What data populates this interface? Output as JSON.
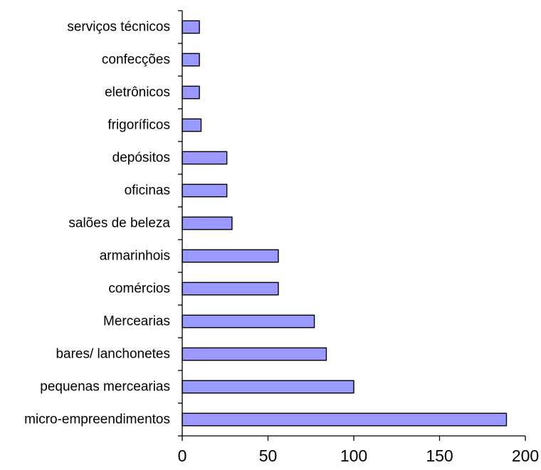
{
  "chart_data": {
    "type": "bar",
    "orientation": "horizontal",
    "title": "",
    "xlabel": "",
    "ylabel": "",
    "categories": [
      "serviços técnicos",
      "confecções",
      "eletrônicos",
      "frigoríficos",
      "depósitos",
      "oficinas",
      "salões de beleza",
      "armarinhois",
      "comércios",
      "Mercearias",
      "bares/ lanchonetes",
      "pequenas mercearias",
      "micro-empreendimentos"
    ],
    "values": [
      10,
      10,
      10,
      11,
      26,
      26,
      29,
      56,
      56,
      77,
      84,
      100,
      189
    ],
    "xlim": [
      0,
      200
    ],
    "xticks": [
      0,
      50,
      100,
      150,
      200
    ],
    "grid": false,
    "legend": "none",
    "bar_color": "#9999ff",
    "bar_edge_color": "#000000"
  }
}
